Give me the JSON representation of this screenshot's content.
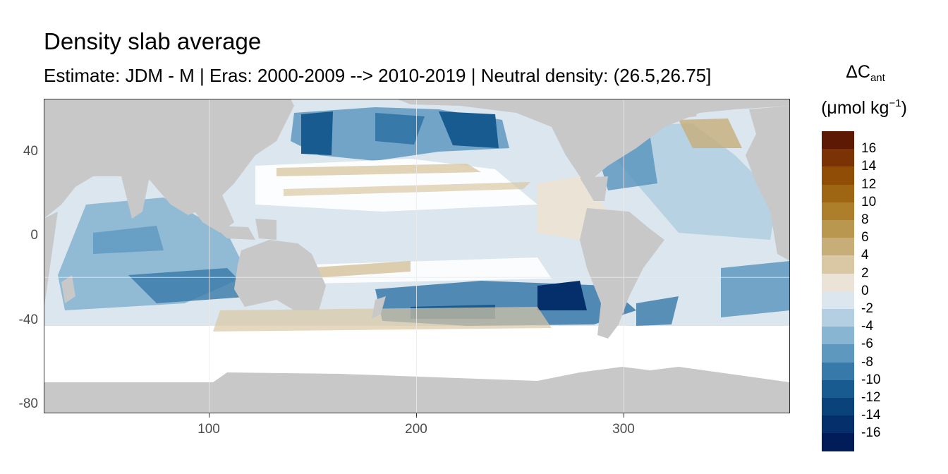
{
  "title": "Density slab average",
  "subtitle": "Estimate: JDM - M | Eras: 2000-2009 --> 2010-2019 | Neutral density: (26.5,26.75]",
  "axes": {
    "x_ticks": [
      "100",
      "200",
      "300"
    ],
    "y_ticks": [
      "40",
      "0",
      "-40",
      "-80"
    ]
  },
  "legend": {
    "title_main": "ΔC",
    "title_sub": "ant",
    "unit_prefix": "(μmol kg",
    "unit_sup": "−1",
    "unit_suffix": ")",
    "labels": [
      "16",
      "14",
      "12",
      "10",
      "8",
      "6",
      "4",
      "2",
      "0",
      "-2",
      "-4",
      "-6",
      "-8",
      "-10",
      "-12",
      "-14",
      "-16"
    ],
    "colors": [
      "#5e1904",
      "#7b3306",
      "#8f4d06",
      "#9e6512",
      "#ad7f2b",
      "#b9974f",
      "#c7ae79",
      "#dac8a4",
      "#ebe3d6",
      "#dbe6ee",
      "#b3cfe1",
      "#88b5d1",
      "#5e98bf",
      "#3779a9",
      "#185b91",
      "#0a427a",
      "#052f6a",
      "#021c5a"
    ]
  },
  "map": {
    "land_color": "#c8c8c8",
    "no_data_color": "#ffffff",
    "xlim": [
      20,
      380
    ],
    "ylim": [
      -85,
      63
    ]
  }
}
